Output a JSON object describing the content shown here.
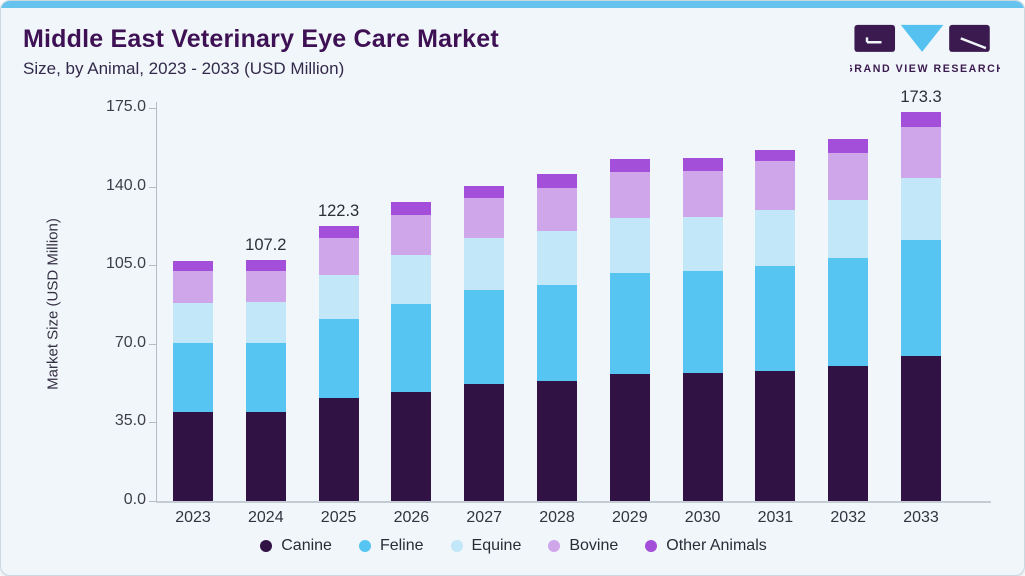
{
  "header": {
    "title": "Middle East Veterinary Eye Care Market",
    "subtitle": "Size, by Animal, 2023 - 2033 (USD Million)"
  },
  "logo": {
    "text": "GRAND VIEW RESEARCH",
    "dark_color": "#3b1b4f",
    "blue_color": "#55c1f0"
  },
  "colors": {
    "card_background": "#f1f6fa",
    "top_accent": "#66c3ed",
    "title_text": "#3e1054",
    "axis_line": "#b3bcc4"
  },
  "chart_data": {
    "type": "bar",
    "stacked": true,
    "title": "Middle East Veterinary Eye Care Market Size, by Animal, 2023 - 2033 (USD Million)",
    "xlabel": "",
    "ylabel": "Market Size (USD Million)",
    "ylim": [
      0,
      175
    ],
    "ytick_labels": [
      "0.0",
      "35.0",
      "70.0",
      "105.0",
      "140.0",
      "175.0"
    ],
    "ytick_values": [
      0,
      35,
      70,
      105,
      140,
      175
    ],
    "grid": false,
    "legend_position": "bottom",
    "categories": [
      "2023",
      "2024",
      "2025",
      "2026",
      "2027",
      "2028",
      "2029",
      "2030",
      "2031",
      "2032",
      "2033"
    ],
    "series": [
      {
        "name": "Canine",
        "color": "#311245",
        "values": [
          39.5,
          39.5,
          45.9,
          48.5,
          52.3,
          53.6,
          56.6,
          56.9,
          57.7,
          60.0,
          64.4
        ]
      },
      {
        "name": "Feline",
        "color": "#56c5f1",
        "values": [
          30.8,
          30.8,
          35.1,
          39.3,
          41.6,
          42.7,
          44.9,
          45.4,
          46.9,
          48.4,
          51.9
        ]
      },
      {
        "name": "Equine",
        "color": "#c2e7f9",
        "values": [
          18.0,
          18.3,
          19.5,
          21.8,
          23.1,
          23.9,
          24.3,
          24.3,
          25.1,
          25.5,
          27.4
        ]
      },
      {
        "name": "Bovine",
        "color": "#cfa6ea",
        "values": [
          14.3,
          13.7,
          16.7,
          17.8,
          18.0,
          19.3,
          20.6,
          20.2,
          21.6,
          21.2,
          22.8
        ]
      },
      {
        "name": "Other Animals",
        "color": "#a44fd9",
        "values": [
          4.2,
          4.9,
          5.1,
          5.6,
          5.3,
          6.2,
          5.7,
          6.0,
          5.0,
          6.1,
          6.8
        ]
      }
    ],
    "bar_labels": [
      {
        "category": "2024",
        "label": "107.2"
      },
      {
        "category": "2025",
        "label": "122.3"
      },
      {
        "category": "2033",
        "label": "173.3"
      }
    ]
  }
}
